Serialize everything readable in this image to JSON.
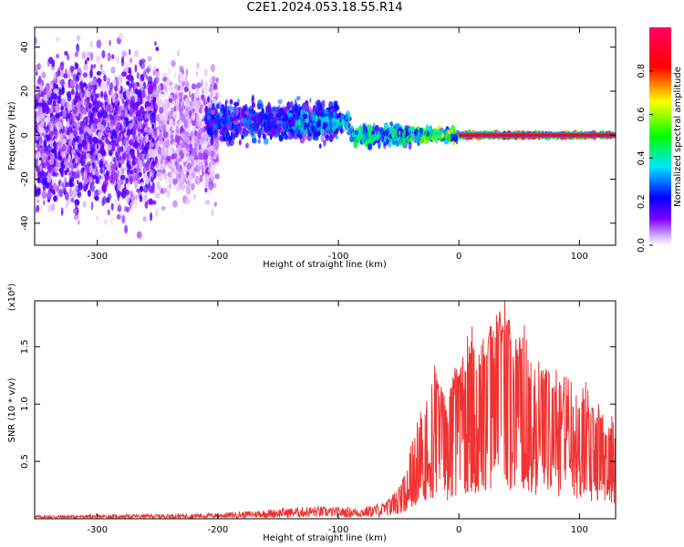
{
  "title": "C2E1.2024.053.18.55.R14",
  "chart_data": [
    {
      "type": "heatmap",
      "title": "C2E1.2024.053.18.55.R14",
      "xlabel": "Height of straight line (km)",
      "ylabel": "Frequency (Hz)",
      "xlim": [
        -352,
        130
      ],
      "ylim": [
        -50,
        49
      ],
      "xticks": [
        -300,
        -200,
        -100,
        0,
        100
      ],
      "yticks": [
        -40,
        -20,
        0,
        20,
        40
      ],
      "grid": false,
      "colorbar": {
        "label": "Normalized spectral amplitude",
        "range": [
          0.0,
          1.0
        ],
        "ticks": [
          0.0,
          0.2,
          0.4,
          0.6,
          0.8
        ],
        "colors": [
          "#ffffff",
          "#7f00ff",
          "#0000ff",
          "#00ffff",
          "#00ff00",
          "#ffff00",
          "#ff0000",
          "#ff0080"
        ]
      },
      "regions": [
        {
          "x": [
            -352,
            -250
          ],
          "freq_center": 0,
          "freq_spread": 48,
          "amplitude": 0.12
        },
        {
          "x": [
            -250,
            -200
          ],
          "freq_center": 0,
          "freq_spread": 40,
          "amplitude": 0.07
        },
        {
          "x": [
            -210,
            -100
          ],
          "freq_center": 6,
          "freq_spread": 12,
          "amplitude": 0.25
        },
        {
          "x": [
            -140,
            -90
          ],
          "freq_center": 6,
          "freq_spread": 6,
          "amplitude": 0.35
        },
        {
          "x": [
            -90,
            -40
          ],
          "freq_center": 0,
          "freq_spread": 6,
          "amplitude": 0.4
        },
        {
          "x": [
            -40,
            0
          ],
          "freq_center": 0,
          "freq_spread": 4,
          "amplitude": 0.55
        },
        {
          "x": [
            0,
            130
          ],
          "freq_center": 0,
          "freq_spread": 1,
          "amplitude": 0.9
        }
      ]
    },
    {
      "type": "line",
      "xlabel": "Height of straight line (km)",
      "ylabel": "SNR (10 * v/v)",
      "yscale_label": "(x10⁴)",
      "xlim": [
        -352,
        130
      ],
      "ylim": [
        0,
        19000
      ],
      "xticks": [
        -300,
        -200,
        -100,
        0,
        100
      ],
      "yticks": [
        5000,
        10000,
        15000
      ],
      "ytick_labels": [
        "0.5",
        "1.0",
        "1.5"
      ],
      "grid": false,
      "color": "#ee3333",
      "series": [
        {
          "x": [
            -352,
            -300,
            -250,
            -200,
            -170,
            -150,
            -120,
            -100,
            -80,
            -60,
            -50,
            -45,
            -40,
            -35,
            -30,
            -25,
            -20,
            -15,
            -10,
            -5,
            0,
            5,
            10,
            15,
            20,
            25,
            30,
            35,
            38,
            40,
            45,
            50,
            55,
            60,
            65,
            70,
            75,
            80,
            85,
            90,
            95,
            100,
            105,
            110,
            115,
            120,
            125,
            130
          ],
          "y": [
            300,
            350,
            400,
            500,
            700,
            900,
            1100,
            1000,
            1000,
            1500,
            2500,
            4000,
            6500,
            8000,
            9500,
            11000,
            13000,
            12000,
            10000,
            12000,
            14000,
            13500,
            15000,
            14500,
            15000,
            16000,
            17000,
            17500,
            19000,
            18000,
            15500,
            16000,
            14500,
            13000,
            13500,
            12500,
            13000,
            12000,
            11500,
            12500,
            11000,
            10500,
            11500,
            9500,
            10000,
            8500,
            8000,
            7500
          ]
        }
      ]
    }
  ]
}
